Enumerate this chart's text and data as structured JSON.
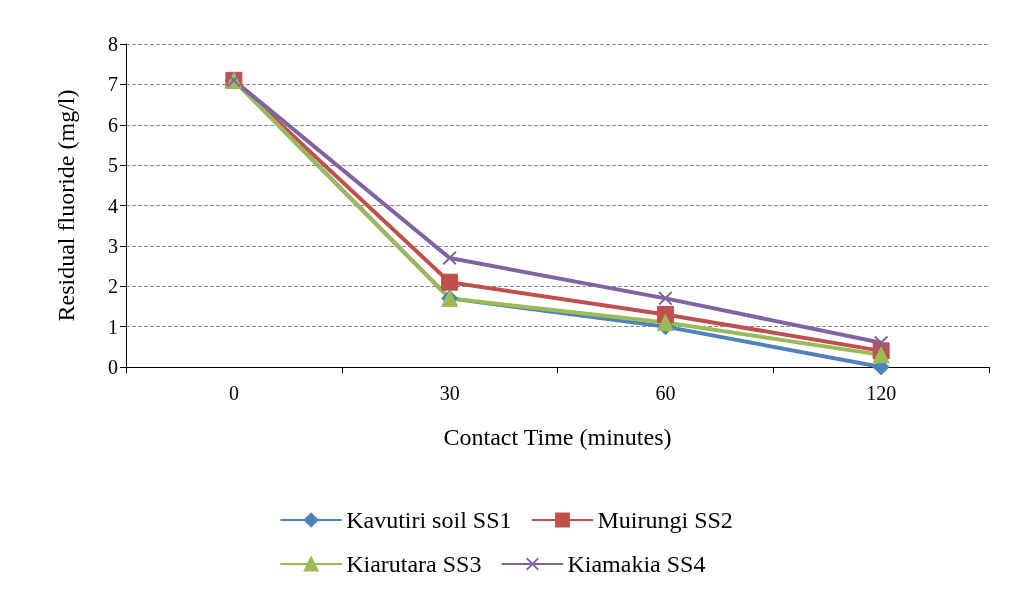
{
  "chart_data": {
    "type": "line",
    "xlabel": "Contact Time (minutes)",
    "ylabel": "Residual fluoride (mg/l)",
    "categories": [
      "0",
      "30",
      "60",
      "120"
    ],
    "series": [
      {
        "name": "Kavutiri soil SS1",
        "color": "#4f81bd",
        "marker": "diamond",
        "values": [
          7.1,
          1.7,
          1.0,
          0.0
        ]
      },
      {
        "name": "Muirungi SS2",
        "color": "#c0504d",
        "marker": "square",
        "values": [
          7.1,
          2.1,
          1.3,
          0.4
        ]
      },
      {
        "name": "Kiarutara SS3",
        "color": "#9bbb59",
        "marker": "triangle",
        "values": [
          7.1,
          1.7,
          1.1,
          0.3
        ]
      },
      {
        "name": "Kiamakia SS4",
        "color": "#8064a2",
        "marker": "cross",
        "values": [
          7.1,
          2.7,
          1.7,
          0.6
        ]
      }
    ],
    "ylim": [
      0,
      8
    ],
    "yticks": [
      0,
      1,
      2,
      3,
      4,
      5,
      6,
      7,
      8
    ],
    "grid": "y",
    "legend": "bottom",
    "line_style": "solid"
  }
}
